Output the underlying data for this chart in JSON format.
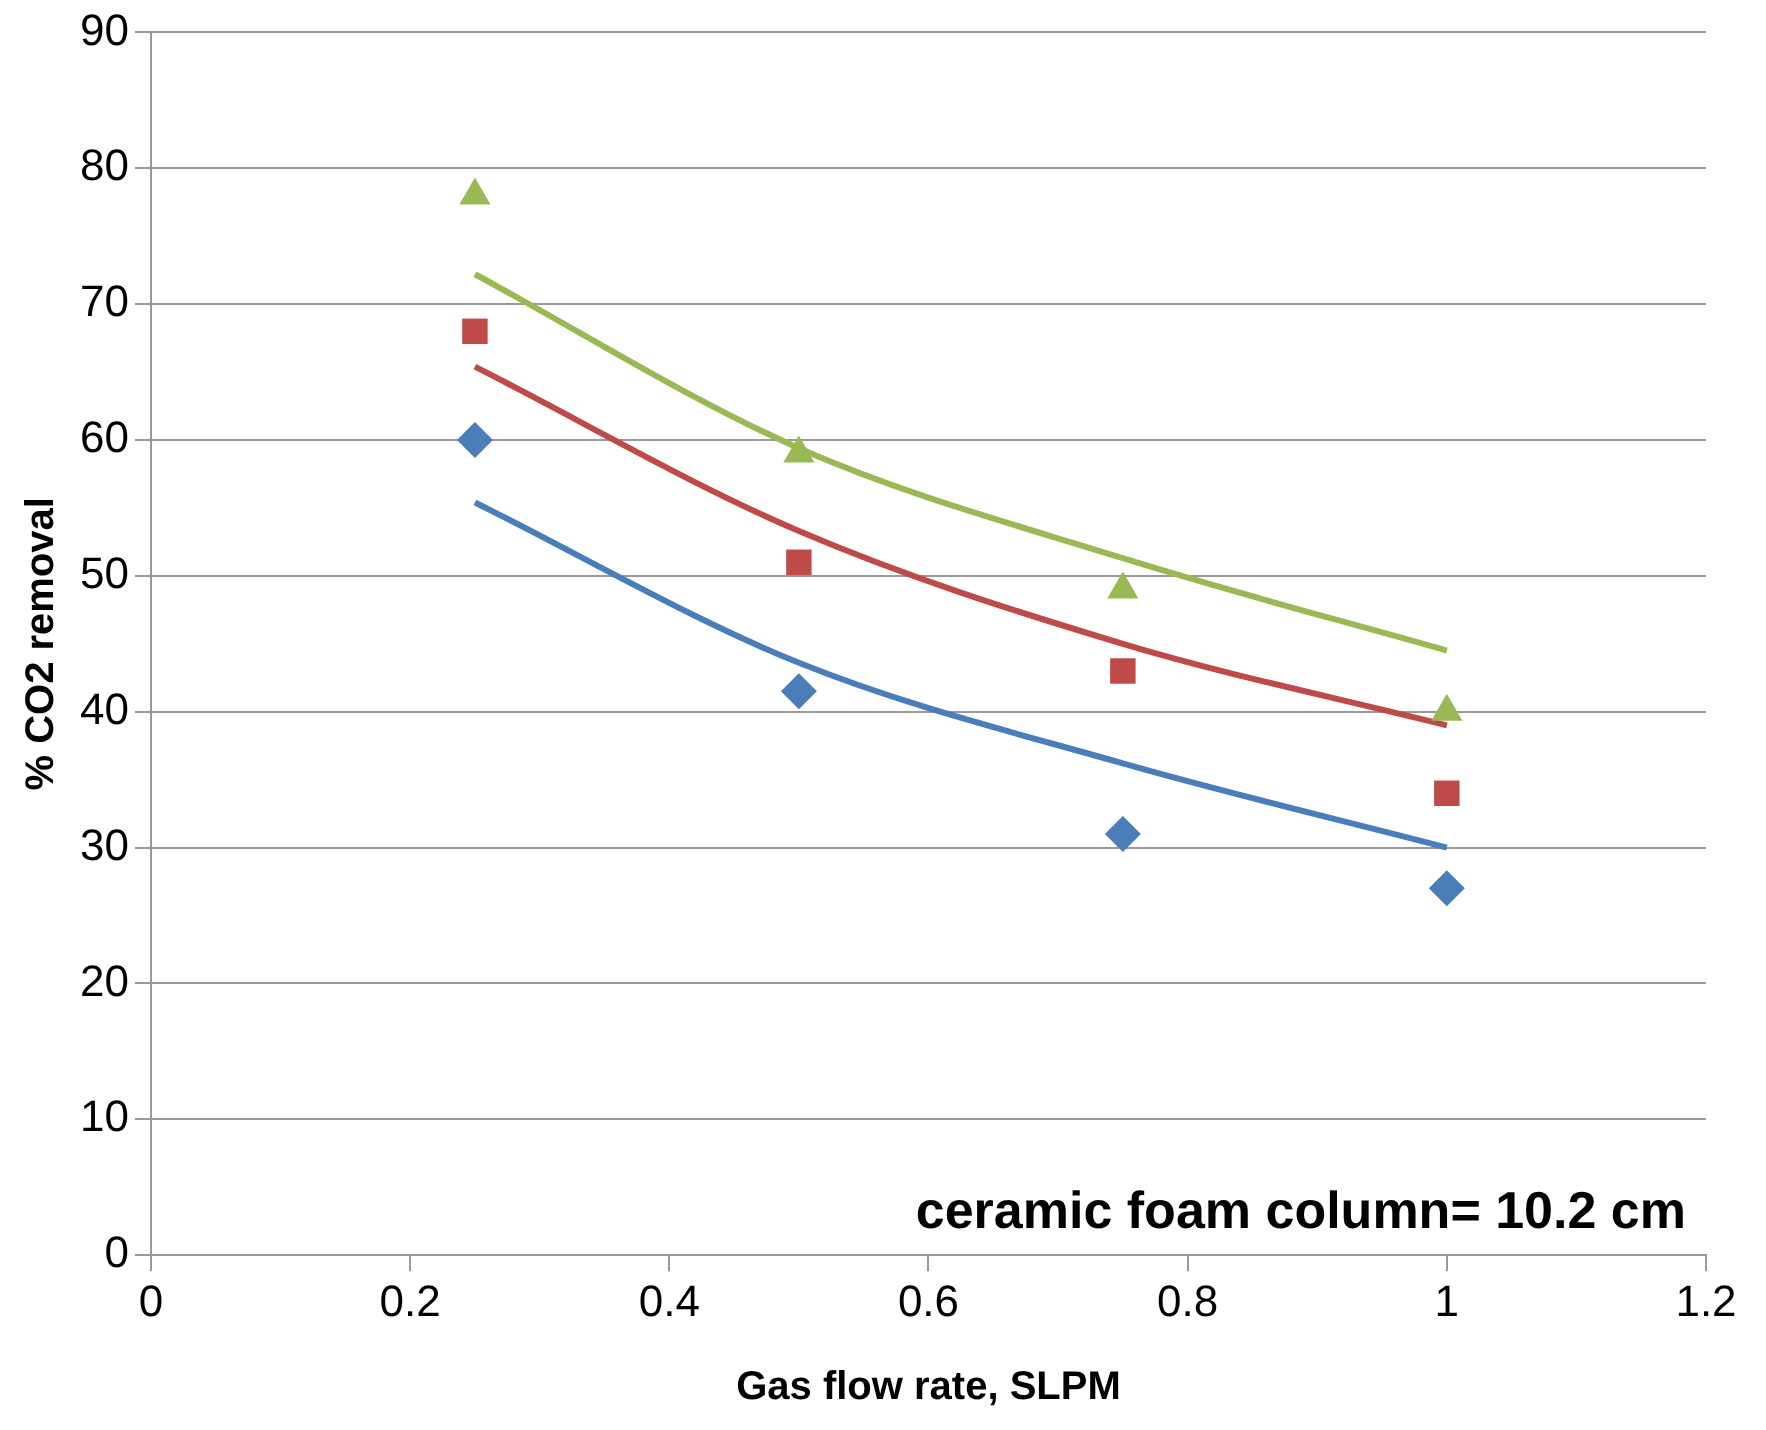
{
  "chart_data": {
    "type": "scatter",
    "xlabel": "Gas flow rate, SLPM",
    "ylabel": "% CO2 removal",
    "xlim": [
      0,
      1.2
    ],
    "xticks": [
      0,
      0.2,
      0.4,
      0.6,
      0.8,
      1,
      1.2
    ],
    "ylim": [
      0,
      90
    ],
    "yticks": [
      0,
      10,
      20,
      30,
      40,
      50,
      60,
      70,
      80,
      90
    ],
    "grid": "y",
    "legend": false,
    "annotations": [
      "ceramic foam column= 10.2 cm"
    ],
    "series": [
      {
        "marker": "diamond",
        "color": "#4a7ebb",
        "x": [
          0.25,
          0.5,
          0.75,
          1
        ],
        "values": [
          60,
          41.5,
          31,
          27
        ]
      },
      {
        "marker": "square",
        "color": "#be4b48",
        "x": [
          0.25,
          0.5,
          0.75,
          1
        ],
        "values": [
          68,
          51,
          43,
          34
        ]
      },
      {
        "marker": "triangle",
        "color": "#98b954",
        "x": [
          0.25,
          0.5,
          0.75,
          1
        ],
        "values": [
          78,
          59,
          49,
          40
        ]
      },
      {
        "type": "line",
        "marker": "none",
        "color": "#4a7ebb",
        "x": [
          0.25,
          0.5,
          0.75,
          1
        ],
        "values": [
          55.4,
          43.6,
          36.2,
          30
        ]
      },
      {
        "type": "line",
        "marker": "none",
        "color": "#be4b48",
        "x": [
          0.25,
          0.5,
          0.75,
          1
        ],
        "values": [
          65.4,
          53.3,
          45,
          39
        ]
      },
      {
        "type": "line",
        "marker": "none",
        "color": "#98b954",
        "x": [
          0.25,
          0.5,
          0.75,
          1
        ],
        "values": [
          72.2,
          59.4,
          51.3,
          44.5
        ]
      }
    ]
  }
}
